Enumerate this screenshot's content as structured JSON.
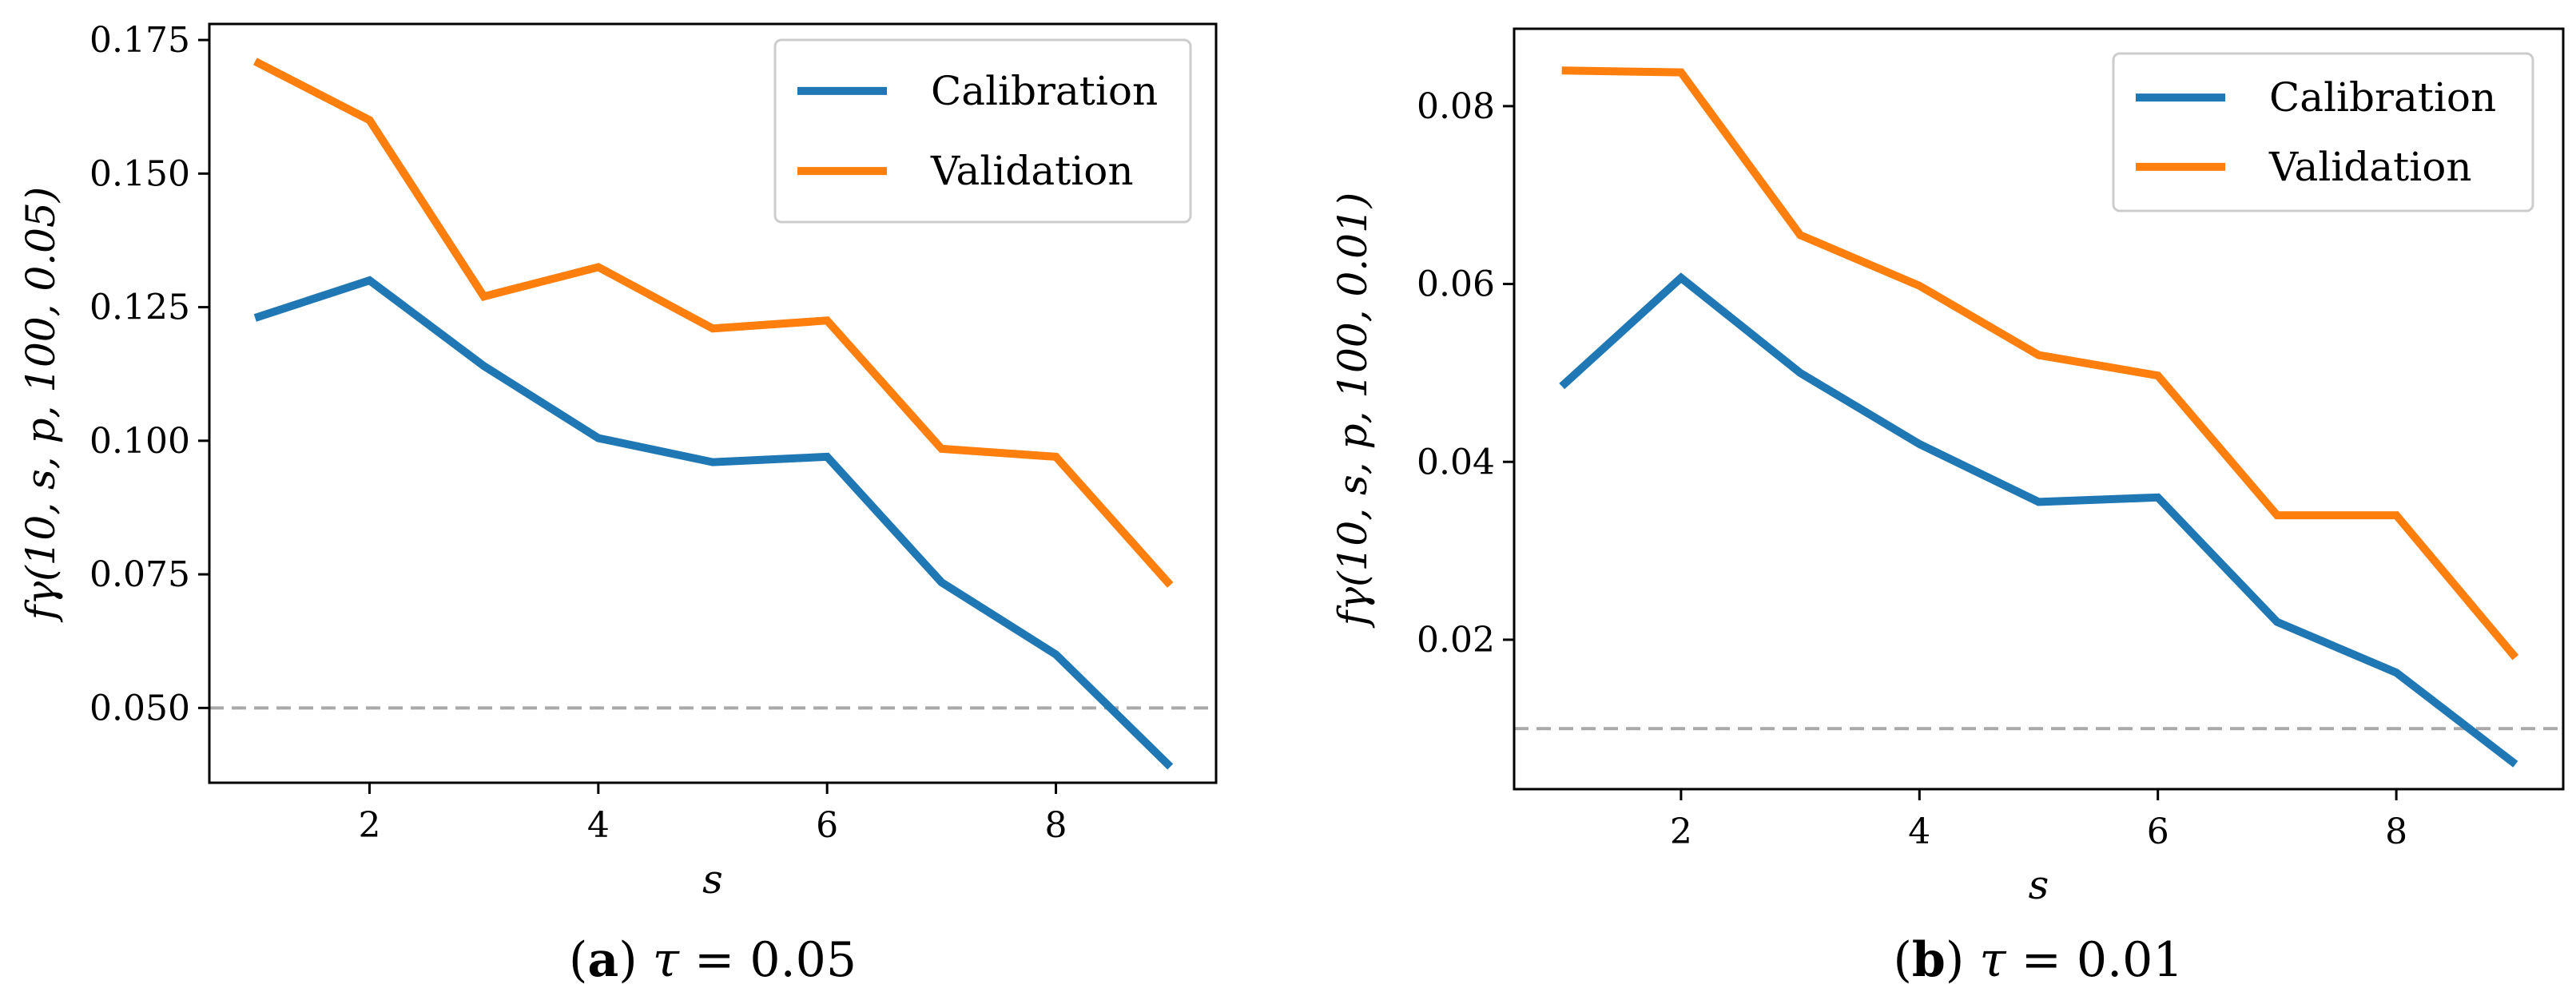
{
  "chart_data": [
    {
      "type": "line",
      "panel_letter": "a",
      "caption_tau": "τ",
      "caption_rest": " = 0.05",
      "xlabel": "s",
      "ylabel": "fγ(10, s, p, 100, 0.05)",
      "x": [
        1,
        2,
        3,
        4,
        5,
        6,
        7,
        8,
        9
      ],
      "xlim": [
        0.6,
        9.4
      ],
      "ylim": [
        0.036,
        0.178
      ],
      "xticks": [
        2,
        4,
        6,
        8
      ],
      "xtick_labels": [
        "2",
        "4",
        "6",
        "8"
      ],
      "yticks": [
        0.05,
        0.075,
        0.1,
        0.125,
        0.15,
        0.175
      ],
      "ytick_labels": [
        "0.050",
        "0.075",
        "0.100",
        "0.125",
        "0.150",
        "0.175"
      ],
      "reference_line": 0.05,
      "legend_position": "top-right",
      "grid": false,
      "series": [
        {
          "name": "Calibration",
          "color": "#1f77b4",
          "values": [
            0.123,
            0.13,
            0.114,
            0.1005,
            0.096,
            0.097,
            0.0735,
            0.06,
            0.039
          ]
        },
        {
          "name": "Validation",
          "color": "#ff7f0e",
          "values": [
            0.171,
            0.16,
            0.127,
            0.1325,
            0.121,
            0.1225,
            0.0985,
            0.097,
            0.073
          ]
        }
      ]
    },
    {
      "type": "line",
      "panel_letter": "b",
      "caption_tau": "τ",
      "caption_rest": " = 0.01",
      "xlabel": "s",
      "ylabel": "fγ(10, s, p, 100, 0.01)",
      "x": [
        1,
        2,
        3,
        4,
        5,
        6,
        7,
        8,
        9
      ],
      "xlim": [
        0.6,
        9.4
      ],
      "ylim": [
        0.0032,
        0.0887
      ],
      "xticks": [
        2,
        4,
        6,
        8
      ],
      "xtick_labels": [
        "2",
        "4",
        "6",
        "8"
      ],
      "yticks": [
        0.02,
        0.04,
        0.06,
        0.08
      ],
      "ytick_labels": [
        "0.02",
        "0.04",
        "0.06",
        "0.08"
      ],
      "reference_line": 0.01,
      "legend_position": "top-right",
      "grid": false,
      "series": [
        {
          "name": "Calibration",
          "color": "#1f77b4",
          "values": [
            0.0485,
            0.0607,
            0.05,
            0.042,
            0.0355,
            0.036,
            0.022,
            0.0163,
            0.006
          ]
        },
        {
          "name": "Validation",
          "color": "#ff7f0e",
          "values": [
            0.084,
            0.0838,
            0.0655,
            0.0598,
            0.052,
            0.0497,
            0.034,
            0.034,
            0.018
          ]
        }
      ]
    }
  ]
}
